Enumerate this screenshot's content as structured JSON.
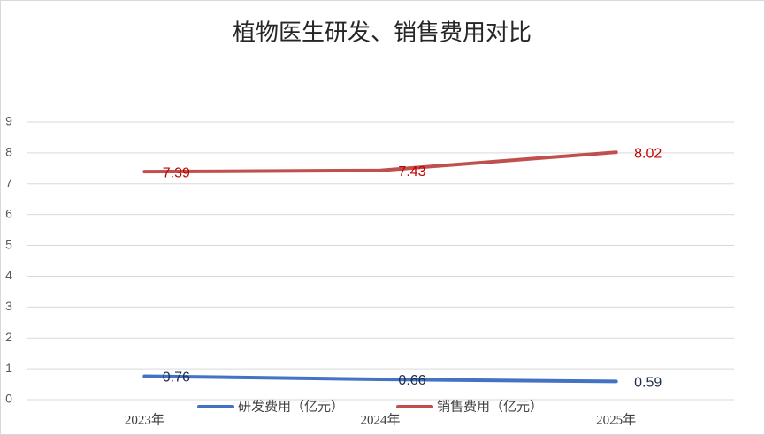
{
  "chart_data": {
    "type": "line",
    "title": "植物医生研发、销售费用对比",
    "categories": [
      "2023年",
      "2024年",
      "2025年"
    ],
    "series": [
      {
        "name": "研发费用（亿元）",
        "color": "#4472c4",
        "values": [
          0.76,
          0.66,
          0.59
        ]
      },
      {
        "name": "销售费用（亿元）",
        "color": "#c0504d",
        "values": [
          7.39,
          7.43,
          8.02
        ]
      }
    ],
    "ylim": [
      0,
      9
    ],
    "yticks": [
      0,
      1,
      2,
      3,
      4,
      5,
      6,
      7,
      8,
      9
    ],
    "grid": true,
    "legend": "bottom"
  }
}
